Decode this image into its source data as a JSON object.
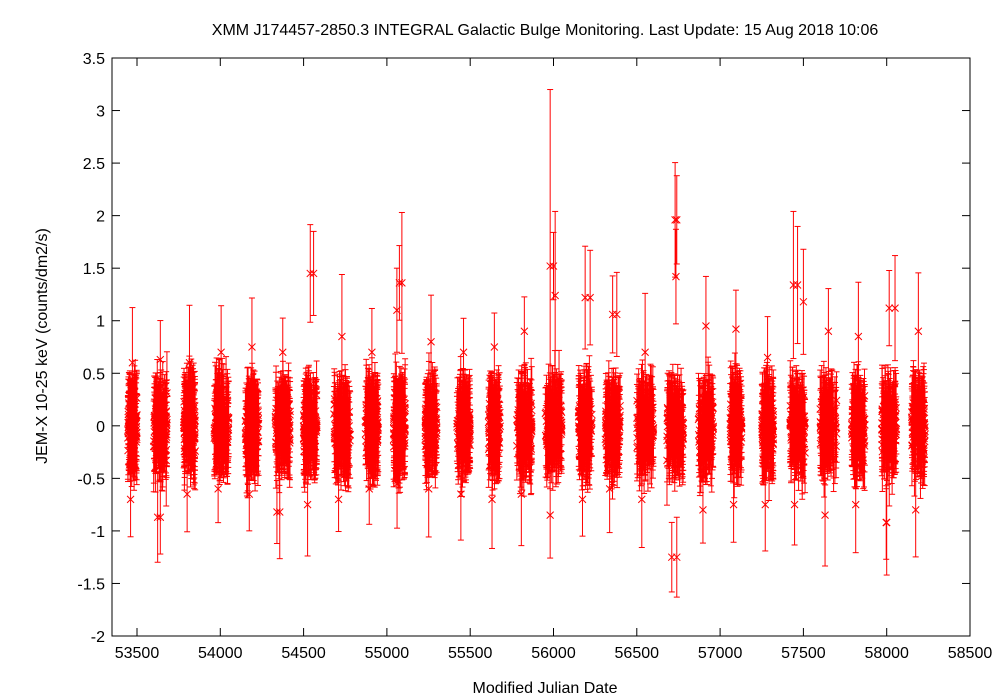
{
  "chart_data": {
    "type": "scatter",
    "title": "XMM J174457-2850.3   INTEGRAL Galactic Bulge Monitoring.  Last Update: 15 Aug 2018 10:06",
    "xlabel": "Modified Julian Date",
    "ylabel": "JEM-X 10-25 keV (counts/dm2/s)",
    "xlim": [
      53350,
      58500
    ],
    "ylim": [
      -2,
      3.5
    ],
    "xticks": [
      53500,
      54000,
      54500,
      55000,
      55500,
      56000,
      56500,
      57000,
      57500,
      58000,
      58500
    ],
    "xtick_labels": [
      "53500",
      "54000",
      "54500",
      "55000",
      "55500",
      "56000",
      "56500",
      "57000",
      "57500",
      "58000",
      "58500"
    ],
    "yticks": [
      -2,
      -1.5,
      -1,
      -0.5,
      0,
      0.5,
      1,
      1.5,
      2,
      2.5,
      3,
      3.5
    ],
    "ytick_labels": [
      "-2",
      "-1.5",
      "-1",
      "-0.5",
      "0",
      "0.5",
      "1",
      "1.5",
      "2",
      "2.5",
      "3",
      "3.5"
    ],
    "marker": "x",
    "series_color": "#ff0000",
    "grid": false,
    "observation_seasons": [
      {
        "start": 53445,
        "end": 53500,
        "min": -0.7,
        "max": 0.6
      },
      {
        "start": 53600,
        "end": 53680,
        "min": -0.87,
        "max": 0.63
      },
      {
        "start": 53780,
        "end": 53850,
        "min": -0.65,
        "max": 0.6
      },
      {
        "start": 53960,
        "end": 54050,
        "min": -0.6,
        "max": 0.7
      },
      {
        "start": 54150,
        "end": 54230,
        "min": -0.65,
        "max": 0.75
      },
      {
        "start": 54330,
        "end": 54420,
        "min": -0.82,
        "max": 0.7
      },
      {
        "start": 54500,
        "end": 54580,
        "min": -0.75,
        "max": 1.45
      },
      {
        "start": 54680,
        "end": 54780,
        "min": -0.7,
        "max": 0.85
      },
      {
        "start": 54870,
        "end": 54950,
        "min": -0.6,
        "max": 0.7
      },
      {
        "start": 55040,
        "end": 55110,
        "min": -0.55,
        "max": 1.36
      },
      {
        "start": 55230,
        "end": 55300,
        "min": -0.6,
        "max": 0.8
      },
      {
        "start": 55420,
        "end": 55500,
        "min": -0.65,
        "max": 0.7
      },
      {
        "start": 55610,
        "end": 55680,
        "min": -0.7,
        "max": 0.75
      },
      {
        "start": 55780,
        "end": 55870,
        "min": -0.65,
        "max": 0.9
      },
      {
        "start": 55950,
        "end": 56050,
        "min": -0.85,
        "max": 1.52
      },
      {
        "start": 56150,
        "end": 56230,
        "min": -0.7,
        "max": 1.22
      },
      {
        "start": 56310,
        "end": 56400,
        "min": -0.6,
        "max": 1.06
      },
      {
        "start": 56500,
        "end": 56600,
        "min": -0.7,
        "max": 0.7
      },
      {
        "start": 56680,
        "end": 56780,
        "min": -1.25,
        "max": 1.96
      },
      {
        "start": 56870,
        "end": 56960,
        "min": -0.8,
        "max": 0.95
      },
      {
        "start": 57060,
        "end": 57130,
        "min": -0.75,
        "max": 0.92
      },
      {
        "start": 57250,
        "end": 57320,
        "min": -0.75,
        "max": 0.65
      },
      {
        "start": 57420,
        "end": 57510,
        "min": -0.75,
        "max": 1.34
      },
      {
        "start": 57600,
        "end": 57700,
        "min": -0.85,
        "max": 0.9
      },
      {
        "start": 57790,
        "end": 57870,
        "min": -0.75,
        "max": 0.85
      },
      {
        "start": 57970,
        "end": 58060,
        "min": -0.92,
        "max": 1.12
      },
      {
        "start": 58150,
        "end": 58230,
        "min": -0.8,
        "max": 0.9
      }
    ],
    "notable_points": [
      {
        "x": 55980,
        "y": 1.52,
        "err": 1.68
      },
      {
        "x": 56010,
        "y": 1.24,
        "err": 0.8
      },
      {
        "x": 56740,
        "y": 1.96,
        "err": 0.42
      },
      {
        "x": 56735,
        "y": 1.42,
        "err": 0.45
      },
      {
        "x": 56740,
        "y": -1.25,
        "err": 0.38
      },
      {
        "x": 54560,
        "y": 1.45,
        "err": 0.4
      },
      {
        "x": 55090,
        "y": 1.36,
        "err": 0.67
      },
      {
        "x": 55060,
        "y": 1.1,
        "err": 0.4
      },
      {
        "x": 57440,
        "y": 1.34,
        "err": 0.7
      },
      {
        "x": 57500,
        "y": 1.18,
        "err": 0.5
      },
      {
        "x": 58050,
        "y": 1.12,
        "err": 0.5
      },
      {
        "x": 56220,
        "y": 1.22,
        "err": 0.45
      },
      {
        "x": 56380,
        "y": 1.06,
        "err": 0.4
      },
      {
        "x": 53640,
        "y": -0.87,
        "err": 0.35
      },
      {
        "x": 54340,
        "y": -0.82,
        "err": 0.3
      },
      {
        "x": 58000,
        "y": -0.92,
        "err": 0.5
      }
    ]
  }
}
